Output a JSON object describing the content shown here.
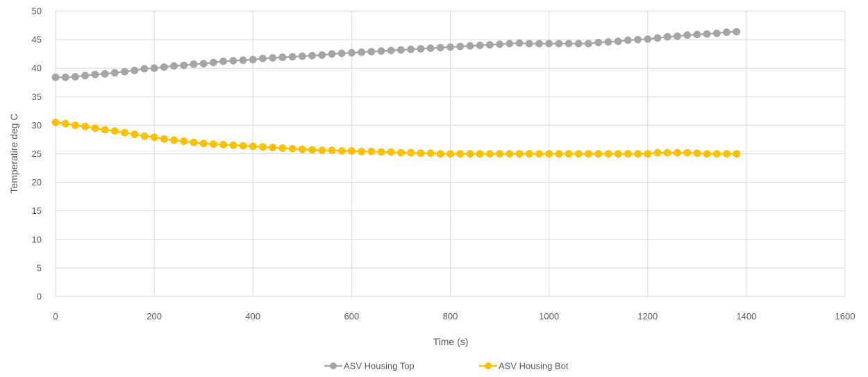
{
  "chart_data": {
    "type": "line",
    "xlabel": "Time (s)",
    "ylabel": "Temperatire deg C",
    "xlim": [
      0,
      1600
    ],
    "ylim": [
      0,
      50
    ],
    "x_ticks": [
      0,
      200,
      400,
      600,
      800,
      1000,
      1200,
      1400,
      1600
    ],
    "y_ticks": [
      0,
      5,
      10,
      15,
      20,
      25,
      30,
      35,
      40,
      45,
      50
    ],
    "grid": true,
    "legend_position": "bottom",
    "x": [
      0,
      20,
      40,
      60,
      80,
      100,
      120,
      140,
      160,
      180,
      200,
      220,
      240,
      260,
      280,
      300,
      320,
      340,
      360,
      380,
      400,
      420,
      440,
      460,
      480,
      500,
      520,
      540,
      560,
      580,
      600,
      620,
      640,
      660,
      680,
      700,
      720,
      740,
      760,
      780,
      800,
      820,
      840,
      860,
      880,
      900,
      920,
      940,
      960,
      980,
      1000,
      1020,
      1040,
      1060,
      1080,
      1100,
      1120,
      1140,
      1160,
      1180,
      1200,
      1220,
      1240,
      1260,
      1280,
      1300,
      1320,
      1340,
      1360,
      1380
    ],
    "series": [
      {
        "name": "ASV Housing Top",
        "color": "#a5a5a5",
        "values": [
          38.4,
          38.4,
          38.5,
          38.7,
          38.9,
          39.0,
          39.2,
          39.4,
          39.6,
          39.9,
          40.0,
          40.2,
          40.4,
          40.5,
          40.7,
          40.8,
          41.0,
          41.2,
          41.3,
          41.4,
          41.5,
          41.7,
          41.8,
          41.9,
          42.0,
          42.1,
          42.2,
          42.3,
          42.5,
          42.6,
          42.7,
          42.8,
          42.9,
          43.0,
          43.1,
          43.2,
          43.3,
          43.4,
          43.5,
          43.6,
          43.7,
          43.8,
          43.9,
          44.0,
          44.1,
          44.2,
          44.3,
          44.4,
          44.3,
          44.3,
          44.3,
          44.3,
          44.3,
          44.3,
          44.3,
          44.5,
          44.6,
          44.7,
          44.9,
          45.0,
          45.1,
          45.3,
          45.5,
          45.6,
          45.8,
          45.9,
          46.0,
          46.1,
          46.3,
          46.4
        ]
      },
      {
        "name": "ASV Housing Bot",
        "color": "#ffc000",
        "values": [
          30.5,
          30.3,
          30.0,
          29.8,
          29.5,
          29.2,
          29.0,
          28.7,
          28.4,
          28.1,
          27.9,
          27.6,
          27.4,
          27.2,
          27.0,
          26.8,
          26.7,
          26.6,
          26.5,
          26.4,
          26.3,
          26.2,
          26.1,
          26.0,
          25.9,
          25.8,
          25.7,
          25.6,
          25.6,
          25.5,
          25.5,
          25.4,
          25.4,
          25.3,
          25.3,
          25.2,
          25.2,
          25.1,
          25.1,
          25.0,
          25.0,
          25.0,
          25.0,
          25.0,
          25.0,
          25.0,
          25.0,
          25.0,
          25.0,
          25.0,
          25.0,
          25.0,
          25.0,
          25.0,
          25.0,
          25.0,
          25.0,
          25.0,
          25.0,
          25.0,
          25.0,
          25.2,
          25.2,
          25.2,
          25.2,
          25.1,
          25.0,
          25.0,
          25.0,
          25.0
        ]
      }
    ]
  }
}
